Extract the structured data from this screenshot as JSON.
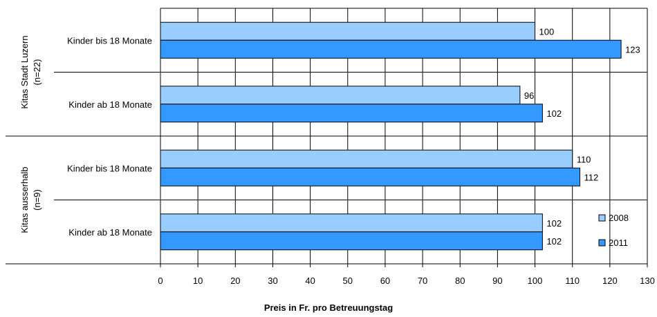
{
  "chart_data": {
    "type": "bar",
    "orientation": "horizontal",
    "xlabel": "Preis in Fr. pro Betreuungstag",
    "ylabel": "",
    "xlim": [
      0,
      130
    ],
    "xticks": [
      0,
      10,
      20,
      30,
      40,
      50,
      60,
      70,
      80,
      90,
      100,
      110,
      120,
      130
    ],
    "grid": true,
    "legend_position": "bottom-right",
    "groups": [
      {
        "label": "Kitas Stadt Luzern",
        "sublabel": "(n=22)"
      },
      {
        "label": "Kitas ausserhalb",
        "sublabel": "(n=9)"
      }
    ],
    "categories": [
      "Kinder bis 18 Monate",
      "Kinder ab 18 Monate",
      "Kinder bis 18 Monate",
      "Kinder ab 18 Monate"
    ],
    "category_group": [
      0,
      0,
      1,
      1
    ],
    "series": [
      {
        "name": "2008",
        "color": "#99ccff",
        "values": [
          100,
          96,
          110,
          102
        ]
      },
      {
        "name": "2011",
        "color": "#3399ff",
        "values": [
          123,
          102,
          112,
          102
        ]
      }
    ]
  }
}
